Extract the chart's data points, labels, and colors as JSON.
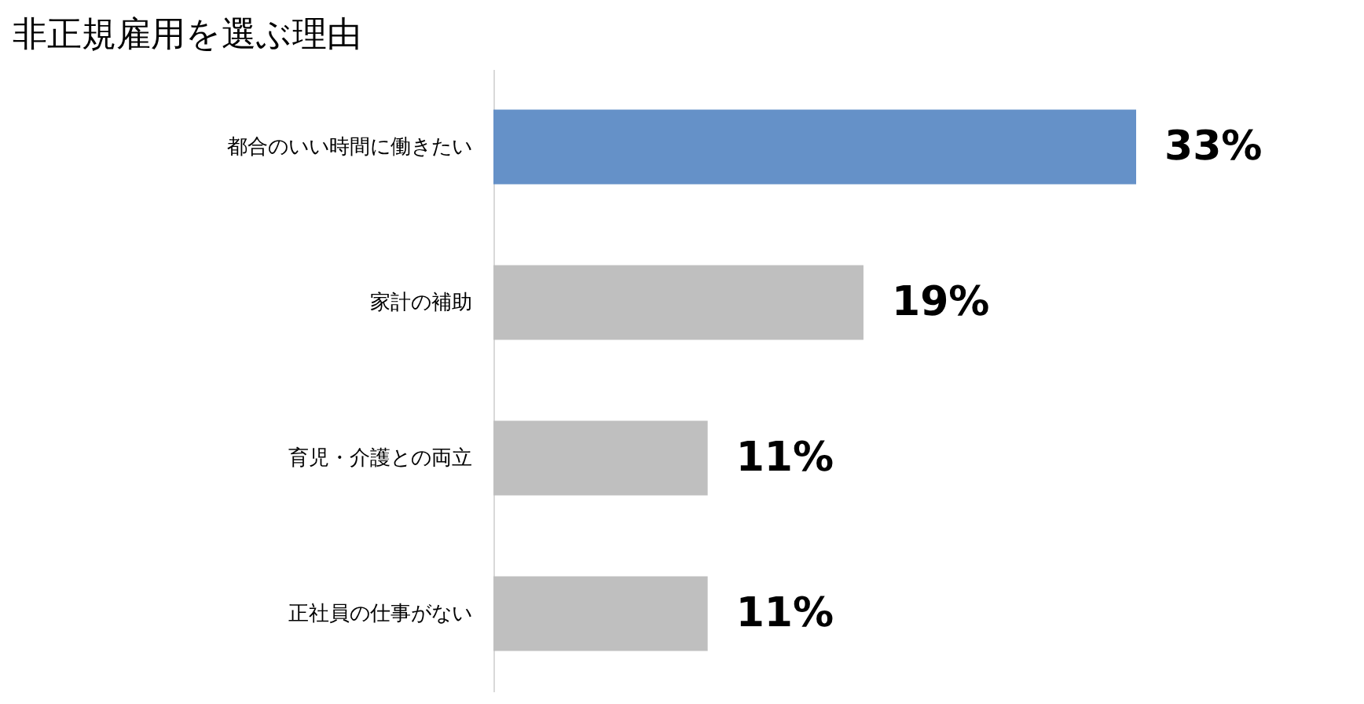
{
  "chart_data": {
    "type": "bar",
    "orientation": "horizontal",
    "title": "非正規雇用を選ぶ理由",
    "categories": [
      "都合のいい時間に働きたい",
      "家計の補助",
      "育児・介護との両立",
      "正社員の仕事がない"
    ],
    "values": [
      33,
      19,
      11,
      11
    ],
    "colors": [
      "#6591c8",
      "#bfbfbf",
      "#bfbfbf",
      "#bfbfbf"
    ],
    "value_labels": [
      "33%",
      "19%",
      "11%",
      "11%"
    ],
    "tick_labels": "y"
  }
}
